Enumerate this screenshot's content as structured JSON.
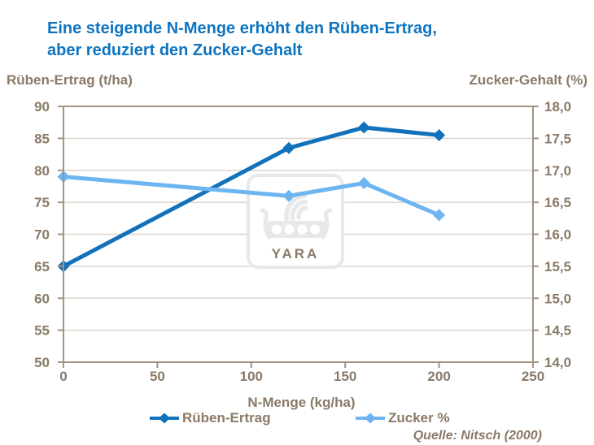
{
  "heading": {
    "line1": "Eine steigende N-Menge erhöht den Rüben-Ertrag,",
    "line2": "aber reduziert den Zucker-Gehalt"
  },
  "colors": {
    "title_blue": "#0f74c0",
    "text_brown": "#8a7a68",
    "axis_line": "#a29383",
    "gridline": "#ddd6cb",
    "series_dark_blue": "#1271bb",
    "series_light_blue": "#6cb5f0",
    "watermark_gray": "#e8e8e8"
  },
  "watermark": "YARA",
  "chart_data": {
    "type": "line",
    "title": "Eine steigende N-Menge erhöht den Rüben-Ertrag, aber reduziert den Zucker-Gehalt",
    "x": [
      0,
      120,
      160,
      200
    ],
    "series": [
      {
        "name": "Rüben-Ertrag",
        "axis": "left",
        "color": "#1271bb",
        "marker": "diamond",
        "values": [
          65,
          83.5,
          86.7,
          85.5
        ]
      },
      {
        "name": "Zucker %",
        "axis": "right",
        "color": "#6cb5f0",
        "marker": "diamond",
        "values": [
          16.9,
          16.6,
          16.8,
          16.3
        ]
      }
    ],
    "xlabel": "N-Menge (kg/ha)",
    "x_axis": {
      "min": 0,
      "max": 250,
      "ticks": [
        0,
        50,
        100,
        150,
        200,
        250
      ],
      "tick_labels": [
        "0",
        "50",
        "100",
        "150",
        "200",
        "250"
      ]
    },
    "left_axis": {
      "title": "Rüben-Ertrag (t/ha)",
      "min": 50,
      "max": 90,
      "ticks": [
        90,
        85,
        80,
        75,
        70,
        65,
        60,
        55,
        50
      ],
      "tick_labels": [
        "90",
        "85",
        "80",
        "75",
        "70",
        "65",
        "60",
        "55",
        "50"
      ]
    },
    "right_axis": {
      "title": "Zucker-Gehalt (%)",
      "min": 14.0,
      "max": 18.0,
      "ticks": [
        18.0,
        17.5,
        17.0,
        16.5,
        16.0,
        15.5,
        15.0,
        14.5,
        14.0
      ],
      "tick_labels": [
        "18,0",
        "17,5",
        "17,0",
        "16,5",
        "16,0",
        "15,5",
        "15,0",
        "14,5",
        "14,0"
      ]
    },
    "legend": [
      {
        "label": "Rüben-Ertrag",
        "color": "#1271bb"
      },
      {
        "label": "Zucker %",
        "color": "#6cb5f0"
      }
    ],
    "grid": "horizontal",
    "legend_position": "bottom",
    "source": "Quelle: Nitsch (2000)"
  }
}
